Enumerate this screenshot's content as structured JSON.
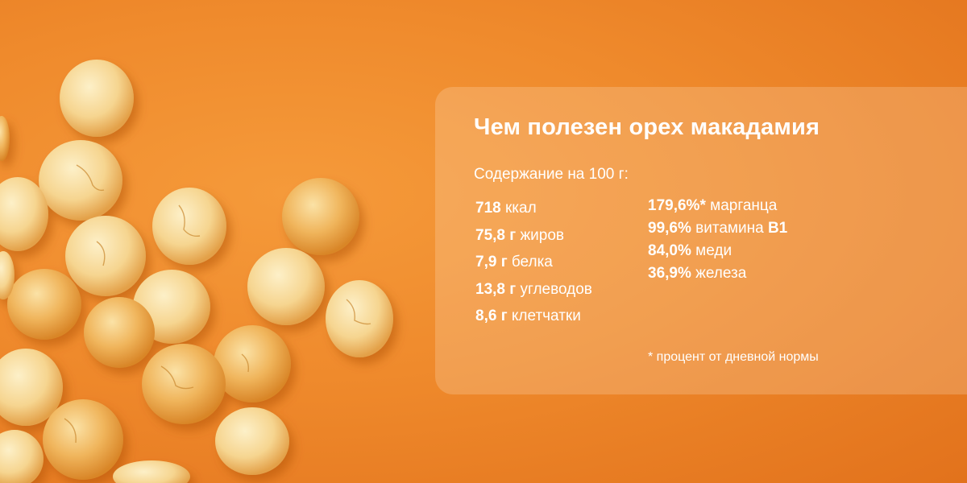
{
  "card": {
    "title": "Чем полезен орех макадамия",
    "subtitle": "Содержание на 100 г:",
    "left_items": [
      {
        "value": "718",
        "label": "ккал"
      },
      {
        "value": "75,8 г",
        "label": "жиров"
      },
      {
        "value": "7,9 г",
        "label": "белка"
      },
      {
        "value": "13,8 г",
        "label": "углеводов"
      },
      {
        "value": "8,6 г",
        "label": "клетчатки"
      }
    ],
    "right_items": [
      {
        "value": "179,6%*",
        "label": "марганца"
      },
      {
        "value": "99,6%",
        "label": "витамина",
        "suffix": "B1"
      },
      {
        "value": "84,0%",
        "label": "меди"
      },
      {
        "value": "36,9%",
        "label": "железа"
      }
    ],
    "footnote": "* процент от дневной нормы"
  },
  "colors": {
    "background": "#ef8a2c",
    "nut_light": "#fbe3ad",
    "nut_dark": "#e9a84a"
  }
}
